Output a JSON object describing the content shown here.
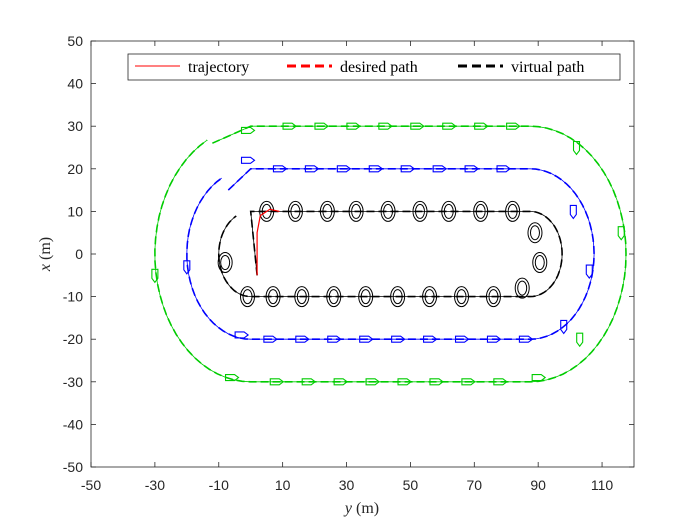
{
  "chart_data": {
    "type": "line",
    "xlabel": {
      "var": "y",
      "unit": " (m)"
    },
    "ylabel": {
      "var": "x",
      "unit": "  (m)"
    },
    "xlim": [
      -50,
      120
    ],
    "ylim": [
      -50,
      50
    ],
    "xticks": [
      "-50",
      "-30",
      "-10",
      "10",
      "30",
      "50",
      "70",
      "90",
      "110"
    ],
    "xtick_values": [
      -50,
      -30,
      -10,
      10,
      30,
      50,
      70,
      90,
      110
    ],
    "yticks": [
      "50",
      "40",
      "30",
      "20",
      "10",
      "0",
      "-10",
      "-20",
      "-30",
      "-40",
      "-50"
    ],
    "ytick_values": [
      50,
      40,
      30,
      20,
      10,
      0,
      -10,
      -20,
      -30,
      -40,
      -50
    ],
    "grid": false,
    "legend": {
      "placement": "top-right",
      "entries": [
        {
          "label": "trajectory",
          "color": "#ff0000",
          "style": "solid"
        },
        {
          "label": "desired path",
          "color": "#ff0000",
          "style": "dashed"
        },
        {
          "label": "virtual path",
          "color": "#000000",
          "style": "dashed"
        }
      ]
    },
    "series": [
      {
        "color": "#000000",
        "description": "inner stadium path, straights x=+10 and x=-10 from y=0 to y=87.5, semicircle radius 10",
        "straight_y": [
          0,
          87.5
        ],
        "half_width": 10,
        "start": [
          2,
          -5
        ],
        "markers": [
          [
            5,
            10
          ],
          [
            14,
            10
          ],
          [
            24,
            10
          ],
          [
            33,
            10
          ],
          [
            43,
            10
          ],
          [
            53,
            10
          ],
          [
            62,
            10
          ],
          [
            72,
            10
          ],
          [
            82,
            10
          ],
          [
            89,
            5
          ],
          [
            90.5,
            -2
          ],
          [
            85,
            -8
          ],
          [
            76,
            -10
          ],
          [
            66,
            -10
          ],
          [
            56,
            -10
          ],
          [
            46,
            -10
          ],
          [
            36,
            -10
          ],
          [
            26,
            -10
          ],
          [
            16,
            -10
          ],
          [
            7,
            -10
          ],
          [
            -1,
            -10
          ],
          [
            -8,
            -2
          ]
        ],
        "marker": "ellipse"
      },
      {
        "color": "#0000ff",
        "description": "middle stadium path, straights x=+20 and x=-20 from y=0 to y=87.5, semicircle radius 20",
        "straight_y": [
          0,
          87.5
        ],
        "half_width": 20,
        "start": [
          -7,
          15
        ],
        "markers": [
          [
            -1,
            22
          ],
          [
            9,
            20
          ],
          [
            19,
            20
          ],
          [
            29,
            20
          ],
          [
            39,
            20
          ],
          [
            49,
            20
          ],
          [
            59,
            20
          ],
          [
            69,
            20
          ],
          [
            79,
            20
          ],
          [
            101,
            10
          ],
          [
            106,
            -4
          ],
          [
            98,
            -17
          ],
          [
            86,
            -20
          ],
          [
            76,
            -20
          ],
          [
            66,
            -20
          ],
          [
            56,
            -20
          ],
          [
            46,
            -20
          ],
          [
            36,
            -20
          ],
          [
            26,
            -20
          ],
          [
            16,
            -20
          ],
          [
            6,
            -20
          ],
          [
            -3,
            -19
          ],
          [
            -20,
            -3
          ]
        ],
        "marker": "boat"
      },
      {
        "color": "#00cc00",
        "description": "outer stadium path, straights x=+30 and x=-30 from y=0 to y=87.5, semicircle radius 30",
        "straight_y": [
          0,
          87.5
        ],
        "half_width": 30,
        "start": [
          -12,
          26
        ],
        "markers": [
          [
            -1,
            29
          ],
          [
            12,
            30
          ],
          [
            22,
            30
          ],
          [
            32,
            30
          ],
          [
            42,
            30
          ],
          [
            52,
            30
          ],
          [
            62,
            30
          ],
          [
            72,
            30
          ],
          [
            82,
            30
          ],
          [
            102,
            25
          ],
          [
            116,
            5
          ],
          [
            103,
            -20
          ],
          [
            90,
            -29
          ],
          [
            78,
            -30
          ],
          [
            68,
            -30
          ],
          [
            58,
            -30
          ],
          [
            48,
            -30
          ],
          [
            38,
            -30
          ],
          [
            28,
            -30
          ],
          [
            18,
            -30
          ],
          [
            8,
            -30
          ],
          [
            -6,
            -29
          ],
          [
            -30,
            -5
          ]
        ],
        "marker": "boat"
      }
    ]
  }
}
